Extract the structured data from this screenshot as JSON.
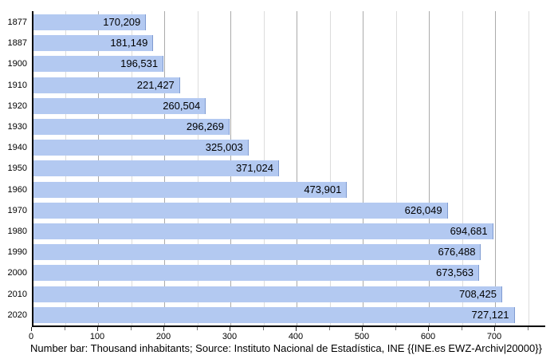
{
  "chart_data": {
    "type": "bar",
    "orientation": "horizontal",
    "categories": [
      "1877",
      "1887",
      "1900",
      "1910",
      "1920",
      "1930",
      "1940",
      "1950",
      "1960",
      "1970",
      "1980",
      "1990",
      "2000",
      "2010",
      "2020"
    ],
    "values": [
      170209,
      181149,
      196531,
      221427,
      260504,
      296269,
      325003,
      371024,
      473901,
      626049,
      694681,
      676488,
      673563,
      708425,
      727121
    ],
    "value_labels": [
      "170,209",
      "181,149",
      "196,531",
      "221,427",
      "260,504",
      "296,269",
      "325,003",
      "371,024",
      "473,901",
      "626,049",
      "694,681",
      "676,488",
      "673,563",
      "708,425",
      "727,121"
    ],
    "x_tick_labels": [
      "0",
      "100",
      "200",
      "300",
      "400",
      "500",
      "600",
      "700"
    ],
    "x_major_ticks": [
      0,
      100,
      200,
      300,
      400,
      500,
      600,
      700
    ],
    "x_minor_step": 50,
    "xlim": [
      0,
      775
    ],
    "unit": "thousand inhabitants",
    "grid": "vertical; major every 100 (gray), minor every 50 (light gray)",
    "legend_position": "none",
    "caption": "Number bar: Thousand inhabitants; Source: Instituto Nacional de Estadística, INE {{INE.es EWZ-Archiv|20000}}",
    "colors": {
      "bar_fill": "#b3c9f1",
      "bar_edge": "#7f9bd1",
      "grid_major": "#aaaaaa",
      "grid_minor": "#dcdcdc",
      "axis": "#000000",
      "text": "#000000",
      "background": "#ffffff"
    }
  }
}
